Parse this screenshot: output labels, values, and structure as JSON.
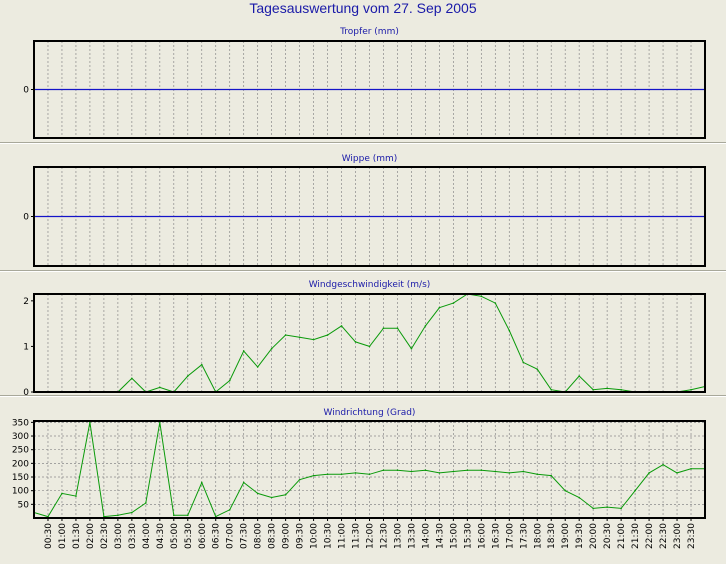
{
  "page": {
    "title": "Tagesauswertung vom 27. Sep 2005"
  },
  "colors": {
    "background": "#ecebe0",
    "title": "#1a1aa8",
    "zero_line": "#1414c8",
    "series": "#0a9a0a",
    "grid": "#8a8a8a",
    "frame": "#000000"
  },
  "x_labels": [
    "00:30",
    "01:00",
    "01:30",
    "02:00",
    "02:30",
    "03:00",
    "03:30",
    "04:00",
    "04:30",
    "05:00",
    "05:30",
    "06:00",
    "06:30",
    "07:00",
    "07:30",
    "08:00",
    "08:30",
    "09:00",
    "09:30",
    "10:00",
    "10:30",
    "11:00",
    "11:30",
    "12:00",
    "12:30",
    "13:00",
    "13:30",
    "14:00",
    "14:30",
    "15:00",
    "15:30",
    "16:00",
    "16:30",
    "17:00",
    "17:30",
    "18:00",
    "18:30",
    "19:00",
    "19:30",
    "20:00",
    "20:30",
    "21:00",
    "21:30",
    "22:00",
    "22:30",
    "23:00",
    "23:30"
  ],
  "chart_data": [
    {
      "type": "line",
      "title": "Tropfer (mm)",
      "yticks": [
        "0"
      ],
      "ylim": [
        -1,
        1
      ],
      "grid": "vertical dashed",
      "series": [
        {
          "values": [
            0,
            0,
            0,
            0,
            0,
            0,
            0,
            0,
            0,
            0,
            0,
            0,
            0,
            0,
            0,
            0,
            0,
            0,
            0,
            0,
            0,
            0,
            0,
            0,
            0,
            0,
            0,
            0,
            0,
            0,
            0,
            0,
            0,
            0,
            0,
            0,
            0,
            0,
            0,
            0,
            0,
            0,
            0,
            0,
            0,
            0,
            0,
            0,
            0
          ]
        }
      ]
    },
    {
      "type": "line",
      "title": "Wippe (mm)",
      "yticks": [
        "0"
      ],
      "ylim": [
        -1,
        1
      ],
      "grid": "vertical dashed",
      "series": [
        {
          "values": [
            0,
            0,
            0,
            0,
            0,
            0,
            0,
            0,
            0,
            0,
            0,
            0,
            0,
            0,
            0,
            0,
            0,
            0,
            0,
            0,
            0,
            0,
            0,
            0,
            0,
            0,
            0,
            0,
            0,
            0,
            0,
            0,
            0,
            0,
            0,
            0,
            0,
            0,
            0,
            0,
            0,
            0,
            0,
            0,
            0,
            0,
            0,
            0,
            0
          ]
        }
      ]
    },
    {
      "type": "line",
      "title": "Windgeschwindigkeit (m/s)",
      "yticks": [
        "2",
        "1",
        "0"
      ],
      "ylim": [
        0,
        2.15
      ],
      "grid": "vertical dashed",
      "series": [
        {
          "values": [
            0,
            0,
            0,
            0,
            0,
            0,
            0,
            0.3,
            0,
            0.1,
            0,
            0.35,
            0.6,
            0,
            0.25,
            0.9,
            0.55,
            0.95,
            1.25,
            1.2,
            1.15,
            1.25,
            1.45,
            1.1,
            1.0,
            1.4,
            1.4,
            0.95,
            1.45,
            1.85,
            1.95,
            2.15,
            2.1,
            1.95,
            1.35,
            0.65,
            0.5,
            0.05,
            0,
            0.35,
            0.05,
            0.08,
            0.05,
            0,
            0,
            0,
            0,
            0.05,
            0.12
          ]
        }
      ]
    },
    {
      "type": "line",
      "title": "Windrichtung (Grad)",
      "yticks": [
        "350",
        "300",
        "250",
        "200",
        "150",
        "100",
        "50"
      ],
      "ylim": [
        0,
        355
      ],
      "grid": "both dashed",
      "series": [
        {
          "values": [
            20,
            5,
            90,
            80,
            350,
            5,
            10,
            20,
            55,
            350,
            10,
            10,
            130,
            5,
            30,
            130,
            90,
            75,
            85,
            140,
            155,
            160,
            160,
            165,
            160,
            175,
            175,
            170,
            175,
            165,
            170,
            175,
            175,
            170,
            165,
            170,
            160,
            155,
            100,
            75,
            35,
            40,
            35,
            100,
            165,
            195,
            165,
            180,
            180
          ]
        }
      ]
    }
  ]
}
